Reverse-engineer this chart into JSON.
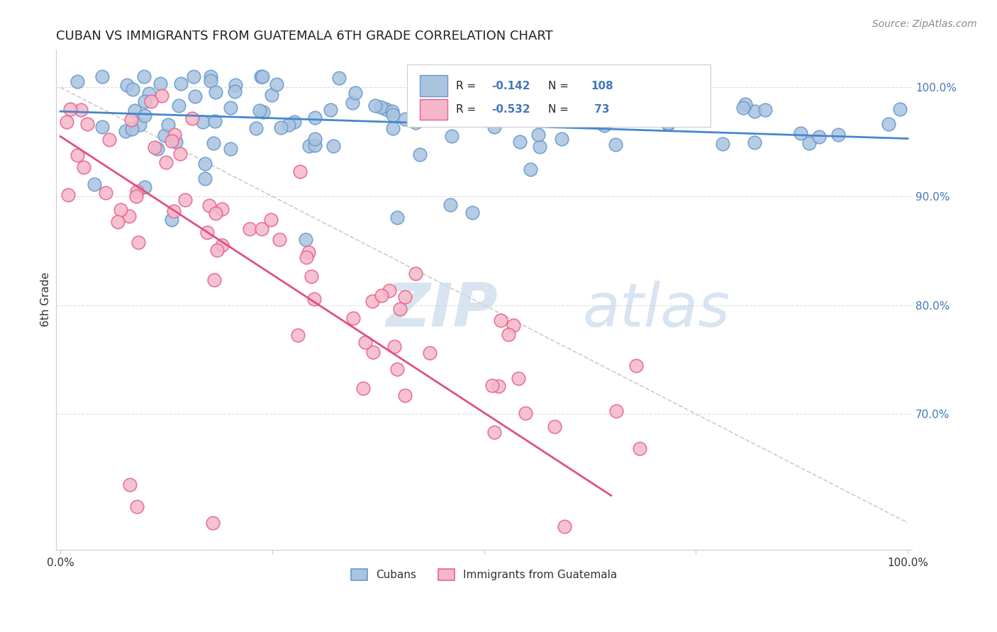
{
  "title": "CUBAN VS IMMIGRANTS FROM GUATEMALA 6TH GRADE CORRELATION CHART",
  "source": "Source: ZipAtlas.com",
  "ylabel": "6th Grade",
  "right_yticklabels": [
    "100.0%",
    "90.0%",
    "80.0%",
    "70.0%"
  ],
  "right_ytick_vals": [
    1.0,
    0.9,
    0.8,
    0.7
  ],
  "blue_R": -0.142,
  "blue_N": 108,
  "pink_R": -0.532,
  "pink_N": 73,
  "blue_color": "#aac4e0",
  "blue_edge": "#6699cc",
  "pink_color": "#f4b8c8",
  "pink_edge": "#e86090",
  "blue_line_color": "#4488cc",
  "pink_line_color": "#e05080",
  "legend_label_blue": "Cubans",
  "legend_label_pink": "Immigrants from Guatemala",
  "watermark_zip": "ZIP",
  "watermark_atlas": "atlas",
  "background_color": "#ffffff",
  "grid_color": "#dddddd",
  "title_fontsize": 13,
  "axis_color": "#4477bb"
}
